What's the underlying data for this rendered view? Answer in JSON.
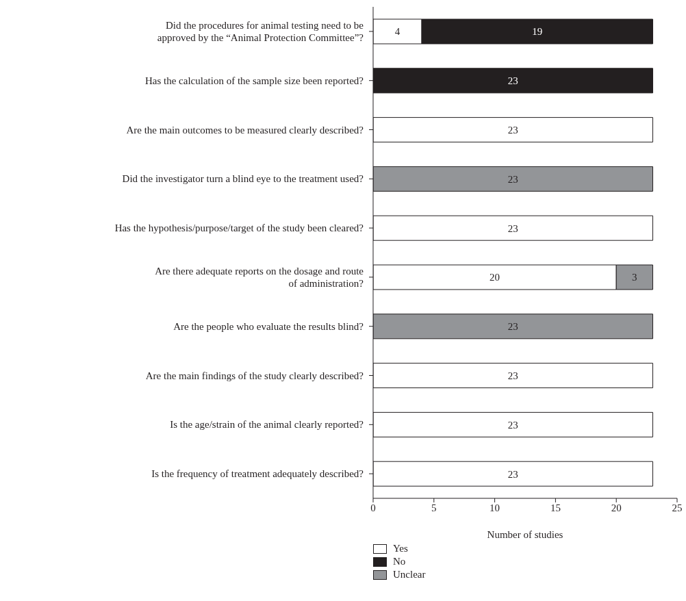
{
  "chart_data": {
    "type": "bar",
    "orientation": "horizontal",
    "stacked": true,
    "xlabel": "Number of studies",
    "categories": [
      "Did the procedures for animal testing need to be approved by the “Animal Protection Committee”?",
      "Has the calculation of the sample size been reported?",
      "Are the main outcomes to be measured clearly described?",
      "Did the investigator turn a blind eye to the treatment used?",
      "Has the hypothesis/purpose/target of the study been cleared?",
      "Are there adequate reports on the dosage and route of administration?",
      "Are the people who evaluate the results blind?",
      "Are the main findings of the study clearly described?",
      "Is the age/strain of the animal clearly reported?",
      "Is the frequency of treatment adequately described?"
    ],
    "series": [
      {
        "name": "Yes",
        "color": "#ffffff",
        "values": [
          4,
          null,
          23,
          null,
          23,
          20,
          null,
          23,
          23,
          23
        ]
      },
      {
        "name": "No",
        "color": "#231f20",
        "values": [
          19,
          23,
          null,
          null,
          null,
          null,
          null,
          null,
          null,
          null
        ]
      },
      {
        "name": "Unclear",
        "color": "#939598",
        "values": [
          null,
          null,
          null,
          23,
          null,
          3,
          23,
          null,
          null,
          null
        ]
      }
    ],
    "xlim": [
      0,
      25
    ],
    "xticks": [
      0,
      5,
      10,
      15,
      20,
      25
    ],
    "grid": false,
    "legend": "bottom",
    "data_labels": true
  }
}
